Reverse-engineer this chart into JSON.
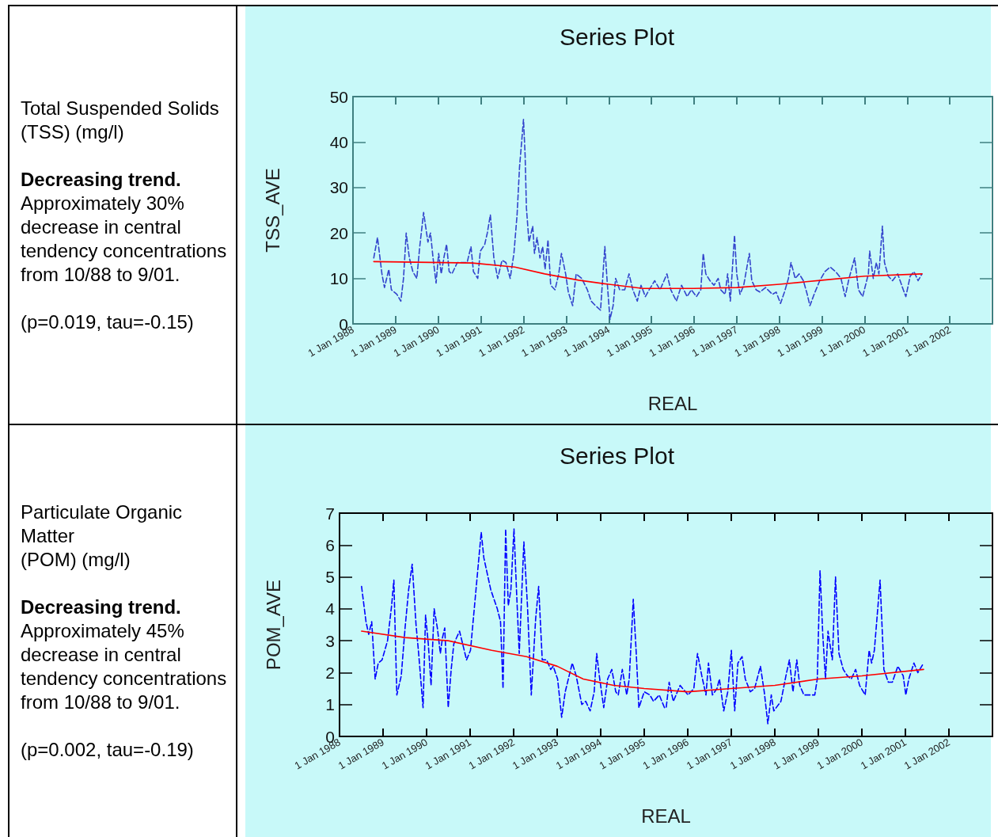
{
  "chart_data": [
    {
      "type": "other",
      "title": "Total Suspended Solids\n(TSS) (mg/l)",
      "annotations": [
        "Decreasing trend.",
        "Approximately 30% decrease in central tendency concentrations from 10/88 to 9/01.",
        "(p=0.019, tau=-0.15)"
      ]
    },
    {
      "type": "line",
      "title": "Series Plot",
      "xlabel": "REAL",
      "ylabel": "TSS_AVE",
      "xlim": [
        "1988-01-01",
        "2003-01-01"
      ],
      "ylim": [
        0,
        50
      ],
      "yticks": [
        0,
        10,
        20,
        30,
        40,
        50
      ],
      "xticks": [
        {
          "value": "1988-01-01",
          "label": "1 Jan 1988"
        },
        {
          "value": "1989-01-01",
          "label": "1 Jan 1989"
        },
        {
          "value": "1990-01-01",
          "label": "1 Jan 1990"
        },
        {
          "value": "1991-01-01",
          "label": "1 Jan 1991"
        },
        {
          "value": "1992-01-01",
          "label": "1 Jan 1992"
        },
        {
          "value": "1993-01-01",
          "label": "1 Jan 1993"
        },
        {
          "value": "1994-01-01",
          "label": "1 Jan 1994"
        },
        {
          "value": "1995-01-01",
          "label": "1 Jan 1995"
        },
        {
          "value": "1996-01-01",
          "label": "1 Jan 1996"
        },
        {
          "value": "1997-01-01",
          "label": "1 Jan 1997"
        },
        {
          "value": "1998-01-01",
          "label": "1 Jan 1998"
        },
        {
          "value": "1999-01-01",
          "label": "1 Jan 1999"
        },
        {
          "value": "2000-01-01",
          "label": "1 Jan 2000"
        },
        {
          "value": "2001-01-01",
          "label": "1 Jan 2001"
        },
        {
          "value": "2002-01-01",
          "label": "1 Jan 2002"
        }
      ],
      "series": [
        {
          "color": "#3344cc",
          "line_style": "dashed",
          "x": [
            "1988-06-27",
            "1988-07-29",
            "1988-09-05",
            "1988-09-27",
            "1988-11-03",
            "1988-11-25",
            "1989-01-11",
            "1989-02-14",
            "1989-03-09",
            "1989-04-01",
            "1989-04-28",
            "1989-05-28",
            "1989-07-01",
            "1989-07-26",
            "1989-08-28",
            "1989-10-04",
            "1989-10-26",
            "1989-11-17",
            "1989-12-13",
            "1990-01-04",
            "1990-01-26",
            "1990-02-21",
            "1990-03-13",
            "1990-04-04",
            "1990-04-28",
            "1990-06-13",
            "1990-09-05",
            "1990-10-08",
            "1990-10-29",
            "1990-12-05",
            "1990-12-27",
            "1991-02-03",
            "1991-02-25",
            "1991-03-23",
            "1991-04-22",
            "1991-05-25",
            "1991-07-01",
            "1991-08-03",
            "1991-09-09",
            "1991-10-11",
            "1991-11-07",
            "1991-11-28",
            "1991-12-16",
            "1992-01-01",
            "1992-01-15",
            "1992-01-26",
            "1992-02-17",
            "1992-03-20",
            "1992-04-04",
            "1992-04-26",
            "1992-05-21",
            "1992-06-13",
            "1992-07-04",
            "1992-07-29",
            "1992-08-21",
            "1992-09-27",
            "1992-10-29",
            "1992-11-21",
            "1992-12-27",
            "1993-01-19",
            "1993-02-25",
            "1993-03-27",
            "1993-05-14",
            "1993-07-01",
            "1993-08-03",
            "1993-09-09",
            "1993-10-22",
            "1993-11-28",
            "1993-12-20",
            "1994-01-11",
            "1994-02-07",
            "1994-02-28",
            "1994-04-04",
            "1994-05-17",
            "1994-06-23",
            "1994-07-26",
            "1994-09-02",
            "1994-10-04",
            "1994-11-10",
            "1994-12-13",
            "1995-01-29",
            "1995-03-16",
            "1995-05-14",
            "1995-06-16",
            "1995-08-03",
            "1995-09-16",
            "1995-11-03",
            "1995-12-09",
            "1996-01-22",
            "1996-02-28",
            "1996-03-20",
            "1996-04-11",
            "1996-05-17",
            "1996-06-20",
            "1996-07-26",
            "1996-08-17",
            "1996-09-23",
            "1996-10-15",
            "1996-11-07",
            "1996-12-13",
            "1997-01-01",
            "1997-01-29",
            "1997-03-02",
            "1997-04-19",
            "1997-05-10",
            "1997-06-16",
            "1997-07-19",
            "1997-09-05",
            "1997-11-03",
            "1997-12-05",
            "1998-01-11",
            "1998-02-14",
            "1998-03-20",
            "1998-04-11",
            "1998-05-17",
            "1998-06-20",
            "1998-07-26",
            "1998-08-28",
            "1998-09-20",
            "1998-10-26",
            "1998-12-13",
            "1999-01-26",
            "1999-03-13",
            "1999-04-28",
            "1999-06-13",
            "1999-07-19",
            "1999-08-21",
            "1999-10-08",
            "1999-11-10",
            "1999-12-16",
            "2000-02-03",
            "2000-02-14",
            "2000-03-16",
            "2000-04-11",
            "2000-05-03",
            "2000-06-02",
            "2000-06-20",
            "2000-07-22",
            "2000-08-28",
            "2000-10-11",
            "2000-11-28",
            "2000-12-20",
            "2001-01-26",
            "2001-02-28",
            "2001-04-04",
            "2001-05-07"
          ],
          "values": [
            14.5,
            19,
            11,
            8,
            12,
            7.5,
            6.5,
            5,
            10,
            20,
            14.5,
            11.5,
            10,
            17,
            24.5,
            18,
            20,
            14.5,
            9,
            15.5,
            11,
            15,
            17.5,
            11.5,
            11,
            13.5,
            13.5,
            17,
            11.5,
            10,
            16,
            17.5,
            20,
            24,
            14.5,
            10,
            14,
            13.5,
            10,
            15.5,
            24,
            34.5,
            40,
            45,
            37,
            25.5,
            18,
            21.5,
            15.5,
            19,
            14.5,
            17,
            12,
            18.5,
            8.5,
            7.5,
            11,
            15.5,
            11,
            7,
            4,
            11,
            10,
            7.5,
            5,
            4,
            3,
            17,
            8.5,
            1,
            4,
            10,
            7.5,
            7.5,
            11,
            7.5,
            5,
            8.5,
            6,
            7.5,
            9.5,
            7.5,
            11,
            7.5,
            5,
            8.5,
            6,
            7.5,
            6,
            7.5,
            15.5,
            11,
            9.5,
            8.5,
            10,
            7.5,
            6.5,
            11,
            5,
            19.5,
            11,
            6.5,
            8.5,
            15.5,
            9.5,
            7.5,
            7,
            8,
            6.5,
            7,
            4.5,
            7,
            10,
            13.5,
            10,
            11,
            9.5,
            6.5,
            4,
            6.5,
            9.5,
            11.5,
            12.5,
            11.5,
            10,
            6,
            10,
            14.5,
            7.5,
            6,
            11,
            16,
            10,
            13.5,
            11,
            21.5,
            13.5,
            10.5,
            9.5,
            11,
            7.5,
            6,
            10.5,
            11.5,
            9.5,
            11
          ]
        },
        {
          "color": "#ff0000",
          "line_style": "solid",
          "x": [
            "1988-06-27",
            "1990-10-19",
            "1991-10-19",
            "1992-07-01",
            "1993-04-19",
            "1994-01-01",
            "1994-10-19",
            "1996-01-01",
            "1997-01-01",
            "1998-01-01",
            "1999-01-01",
            "2000-01-01",
            "2001-05-07"
          ],
          "values": [
            13.7,
            13.4,
            12.5,
            11,
            9.6,
            8.7,
            7.8,
            7.8,
            8,
            8.7,
            9.6,
            10.5,
            11
          ]
        }
      ]
    },
    {
      "type": "other",
      "title": "Particulate Organic Matter\n(POM) (mg/l)",
      "annotations": [
        "Decreasing trend.",
        "Approximately 45% decrease in central tendency concentrations from 10/88 to 9/01.",
        "(p=0.002, tau=-0.19)"
      ]
    },
    {
      "type": "line",
      "title": "Series Plot",
      "xlabel": "REAL",
      "ylabel": "POM_AVE",
      "xlim": [
        "1988-01-01",
        "2003-01-01"
      ],
      "ylim": [
        0,
        7
      ],
      "yticks": [
        0,
        1,
        2,
        3,
        4,
        5,
        6,
        7
      ],
      "xticks": [
        {
          "value": "1988-01-01",
          "label": "1 Jan 1988"
        },
        {
          "value": "1989-01-01",
          "label": "1 Jan 1989"
        },
        {
          "value": "1990-01-01",
          "label": "1 Jan 1990"
        },
        {
          "value": "1991-01-01",
          "label": "1 Jan 1991"
        },
        {
          "value": "1992-01-01",
          "label": "1 Jan 1992"
        },
        {
          "value": "1993-01-01",
          "label": "1 Jan 1993"
        },
        {
          "value": "1994-01-01",
          "label": "1 Jan 1994"
        },
        {
          "value": "1995-01-01",
          "label": "1 Jan 1995"
        },
        {
          "value": "1996-01-01",
          "label": "1 Jan 1996"
        },
        {
          "value": "1997-01-01",
          "label": "1 Jan 1997"
        },
        {
          "value": "1998-01-01",
          "label": "1 Jan 1998"
        },
        {
          "value": "1999-01-01",
          "label": "1 Jan 1999"
        },
        {
          "value": "2000-01-01",
          "label": "1 Jan 2000"
        },
        {
          "value": "2001-01-01",
          "label": "1 Jan 2001"
        },
        {
          "value": "2002-01-01",
          "label": "1 Jan 2002"
        }
      ],
      "series": [
        {
          "color": "#0000ff",
          "line_style": "dashed",
          "x": [
            "1988-07-04",
            "1988-08-10",
            "1988-09-02",
            "1988-09-27",
            "1988-10-26",
            "1988-11-21",
            "1988-12-23",
            "1989-02-07",
            "1989-03-13",
            "1989-04-01",
            "1989-04-26",
            "1989-06-02",
            "1989-07-04",
            "1989-08-03",
            "1989-09-02",
            "1989-10-04",
            "1989-10-26",
            "1989-12-02",
            "1989-12-23",
            "1990-01-15",
            "1990-02-07",
            "1990-03-05",
            "1990-04-01",
            "1990-04-26",
            "1990-05-14",
            "1990-06-02",
            "1990-07-01",
            "1990-07-26",
            "1990-08-17",
            "1990-10-04",
            "1990-12-02",
            "1991-01-04",
            "1991-02-07",
            "1991-03-13",
            "1991-04-04",
            "1991-04-26",
            "1991-06-23",
            "1991-08-17",
            "1991-09-13",
            "1991-10-04",
            "1991-10-26",
            "1991-11-17",
            "1991-12-09",
            "1992-01-04",
            "1992-01-26",
            "1992-02-17",
            "1992-03-27",
            "1992-04-26",
            "1992-05-28",
            "1992-07-04",
            "1992-07-29",
            "1992-08-28",
            "1992-10-04",
            "1992-11-07",
            "1992-11-28",
            "1993-01-04",
            "1993-02-07",
            "1993-03-09",
            "1993-05-07",
            "1993-06-09",
            "1993-07-26",
            "1993-08-28",
            "1993-10-04",
            "1993-11-07",
            "1993-11-28",
            "1993-12-20",
            "1994-01-26",
            "1994-02-28",
            "1994-04-04",
            "1994-05-07",
            "1994-05-28",
            "1994-07-01",
            "1994-08-07",
            "1994-08-28",
            "1994-10-01",
            "1994-10-26",
            "1994-11-17",
            "1995-01-01",
            "1995-02-17",
            "1995-03-20",
            "1995-05-07",
            "1995-06-20",
            "1995-07-04",
            "1995-07-29",
            "1995-09-02",
            "1995-10-29",
            "1996-01-04",
            "1996-02-21",
            "1996-03-23",
            "1996-04-28",
            "1996-06-02",
            "1996-06-23",
            "1996-07-26",
            "1996-09-02",
            "1996-09-23",
            "1996-10-29",
            "1996-12-02",
            "1997-01-01",
            "1997-01-29",
            "1997-02-25",
            "1997-04-01",
            "1997-04-28",
            "1997-06-09",
            "1997-07-15",
            "1997-09-02",
            "1997-10-04",
            "1997-11-03",
            "1997-12-02",
            "1997-12-23",
            "1998-02-21",
            "1998-04-04",
            "1998-05-03",
            "1998-06-02",
            "1998-07-04",
            "1998-07-29",
            "1998-09-02",
            "1998-10-29",
            "1998-12-02",
            "1998-12-23",
            "1999-01-15",
            "1999-02-07",
            "1999-03-02",
            "1999-03-23",
            "1999-04-28",
            "1999-05-25",
            "1999-06-23",
            "1999-07-29",
            "1999-09-02",
            "1999-10-04",
            "1999-11-10",
            "1999-12-13",
            "2000-01-29",
            "2000-03-02",
            "2000-03-23",
            "2000-04-15",
            "2000-06-02",
            "2000-07-04",
            "2000-08-10",
            "2000-09-13",
            "2000-10-29",
            "2000-12-13",
            "2001-01-04",
            "2001-01-29",
            "2001-03-13",
            "2001-04-15",
            "2001-06-02"
          ],
          "values": [
            4.7,
            3.6,
            3.2,
            3.6,
            1.8,
            2.3,
            2.4,
            3.0,
            4.1,
            4.9,
            1.3,
            1.9,
            3.4,
            4.6,
            5.4,
            3.5,
            2.6,
            0.9,
            3.8,
            2.9,
            1.6,
            4.0,
            3.4,
            2.6,
            3.1,
            3.4,
            0.9,
            2.1,
            2.9,
            3.3,
            2.4,
            2.7,
            4.1,
            5.5,
            6.4,
            5.6,
            4.6,
            4.0,
            3.6,
            1.5,
            6.5,
            4.1,
            4.6,
            6.5,
            4.5,
            2.6,
            6.1,
            4.1,
            1.3,
            3.7,
            4.7,
            2.4,
            2.4,
            2.1,
            2.2,
            1.8,
            0.6,
            1.4,
            2.3,
            1.9,
            1.0,
            1.1,
            0.8,
            1.4,
            2.6,
            1.9,
            0.9,
            1.8,
            2.1,
            1.4,
            1.3,
            2.1,
            1.3,
            1.8,
            4.3,
            2.6,
            0.9,
            1.4,
            1.3,
            1.1,
            1.3,
            0.9,
            0.9,
            1.7,
            1.1,
            1.6,
            1.3,
            1.5,
            2.6,
            1.9,
            1.3,
            2.3,
            1.3,
            1.5,
            1.8,
            0.8,
            1.4,
            2.7,
            0.8,
            2.3,
            2.5,
            1.8,
            1.4,
            1.5,
            2.2,
            1.4,
            0.4,
            1.3,
            0.8,
            1.1,
            1.9,
            2.4,
            1.4,
            2.4,
            1.6,
            1.3,
            1.3,
            1.3,
            1.8,
            5.2,
            3.2,
            1.8,
            3.3,
            2.4,
            5.0,
            2.6,
            2.1,
            1.9,
            1.8,
            2.1,
            1.6,
            1.3,
            2.7,
            2.3,
            2.7,
            4.9,
            2.1,
            1.7,
            1.7,
            2.2,
            1.9,
            1.3,
            1.8,
            2.3,
            2.0,
            2.3
          ]
        },
        {
          "color": "#ff0000",
          "line_style": "solid",
          "x": [
            "1988-07-04",
            "1989-07-01",
            "1990-07-01",
            "1991-07-01",
            "1992-04-19",
            "1993-01-01",
            "1993-08-07",
            "1994-04-19",
            "1995-01-01",
            "1996-01-01",
            "1997-01-01",
            "1998-01-01",
            "1999-01-01",
            "2000-01-01",
            "2001-06-02"
          ],
          "values": [
            3.3,
            3.1,
            3.0,
            2.7,
            2.5,
            2.2,
            1.8,
            1.6,
            1.5,
            1.4,
            1.5,
            1.6,
            1.8,
            1.9,
            2.1
          ]
        }
      ]
    }
  ]
}
